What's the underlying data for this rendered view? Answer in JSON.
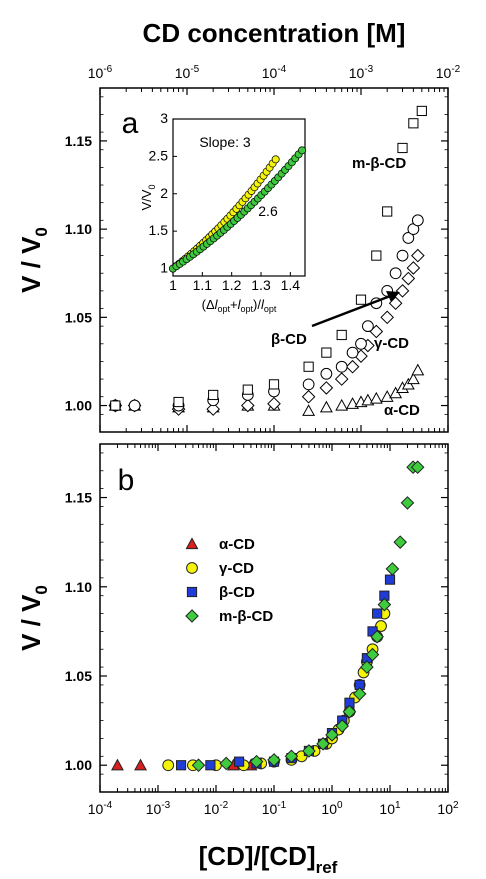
{
  "chart_data": [
    {
      "panel": "a",
      "type": "scatter",
      "xscale": "log",
      "top_axis_title": "CD concentration [M]",
      "top_ticks": [
        "10^-6",
        "10^-5",
        "10^-4",
        "10^-3",
        "10^-2"
      ],
      "xlim": [
        1e-06,
        0.01
      ],
      "ylabel": "V / V0",
      "ylim": [
        0.985,
        1.18
      ],
      "yticks": [
        "1.00",
        "1.05",
        "1.10",
        "1.15"
      ],
      "annotations": [
        "m-β-CD",
        "β-CD",
        "γ-CD",
        "α-CD"
      ],
      "series": [
        {
          "name": "α-CD",
          "marker": "open-triangle",
          "x": [
            1.5e-06,
            2.5e-06,
            8e-06,
            2e-05,
            5e-05,
            0.0001,
            0.00025,
            0.0004,
            0.0006,
            0.0008,
            0.001,
            0.0012,
            0.0015,
            0.002,
            0.0025,
            0.003,
            0.0035,
            0.004,
            0.0045
          ],
          "y": [
            1.0,
            1.0,
            0.999,
            0.999,
            1.0,
            1.0,
            0.997,
            0.999,
            1.0,
            1.001,
            1.002,
            1.003,
            1.004,
            1.005,
            1.007,
            1.01,
            1.012,
            1.015,
            1.02
          ]
        },
        {
          "name": "γ-CD",
          "marker": "open-diamond",
          "x": [
            1.5e-06,
            2.5e-06,
            8e-06,
            2e-05,
            5e-05,
            0.0001,
            0.00025,
            0.0004,
            0.0006,
            0.0008,
            0.001,
            0.0012,
            0.0015,
            0.002,
            0.0025,
            0.003,
            0.0035,
            0.004,
            0.0045
          ],
          "y": [
            1.0,
            1.0,
            0.998,
            0.998,
            1.0,
            1.001,
            1.005,
            1.01,
            1.015,
            1.022,
            1.028,
            1.034,
            1.042,
            1.05,
            1.058,
            1.065,
            1.072,
            1.078,
            1.085
          ]
        },
        {
          "name": "β-CD",
          "marker": "open-circle",
          "x": [
            1.5e-06,
            2.5e-06,
            8e-06,
            2e-05,
            5e-05,
            0.0001,
            0.00025,
            0.0004,
            0.0006,
            0.0008,
            0.001,
            0.0012,
            0.0015,
            0.002,
            0.0025,
            0.003,
            0.0035,
            0.004,
            0.0045
          ],
          "y": [
            1.0,
            1.0,
            1.0,
            1.003,
            1.006,
            1.008,
            1.012,
            1.018,
            1.022,
            1.03,
            1.035,
            1.045,
            1.058,
            1.065,
            1.075,
            1.085,
            1.095,
            1.1,
            1.105
          ]
        },
        {
          "name": "m-β-CD",
          "marker": "open-square",
          "x": [
            1.5e-06,
            8e-06,
            2e-05,
            5e-05,
            0.0001,
            0.00025,
            0.0004,
            0.0006,
            0.001,
            0.0015,
            0.002,
            0.003,
            0.004,
            0.005
          ],
          "y": [
            1.0,
            1.002,
            1.006,
            1.009,
            1.012,
            1.022,
            1.03,
            1.04,
            1.06,
            1.085,
            1.11,
            1.146,
            1.16,
            1.167
          ]
        }
      ],
      "inset": {
        "ylabel": "V/V0",
        "xlabel": "(Δl_opt+l_opt)/l_opt",
        "xlim": [
          1.0,
          1.45
        ],
        "ylim": [
          0.9,
          3.0
        ],
        "xticks": [
          "1",
          "1.1",
          "1.2",
          "1.3",
          "1.4"
        ],
        "yticks": [
          "1",
          "1.5",
          "2",
          "2.5",
          "3"
        ],
        "annotations": [
          "Slope: 3",
          "2.6"
        ],
        "series": [
          {
            "color": "#f4f40a",
            "slope": 3,
            "x_end": 1.35
          },
          {
            "color": "#3ec83e",
            "slope": 2.6,
            "x_end": 1.44
          }
        ]
      }
    },
    {
      "panel": "b",
      "type": "scatter",
      "xscale": "log",
      "xlabel": "[CD]/[CD]ref",
      "xticks": [
        "10^-4",
        "10^-3",
        "10^-2",
        "10^-1",
        "10^0",
        "10^1",
        "10^2"
      ],
      "xlim": [
        0.0001,
        100
      ],
      "ylabel": "V / V0",
      "ylim": [
        0.985,
        1.18
      ],
      "yticks": [
        "1.00",
        "1.05",
        "1.10",
        "1.15"
      ],
      "legend_position": "center-left",
      "series": [
        {
          "name": "α-CD",
          "marker": "triangle",
          "color": "#d81f1f",
          "x": [
            0.0002,
            0.0005,
            0.02,
            0.04
          ],
          "y": [
            1.0,
            1.0,
            1.0,
            1.0
          ]
        },
        {
          "name": "γ-CD",
          "marker": "circle",
          "color": "#f4f40a",
          "x": [
            0.0015,
            0.004,
            0.01,
            0.03,
            0.06,
            0.1,
            0.2,
            0.3,
            0.5,
            0.8,
            1.0,
            1.3,
            1.6,
            2.0,
            2.5,
            3.0,
            3.5,
            4.0,
            5.0,
            6.0,
            7.0,
            8.0
          ],
          "y": [
            1.0,
            1.0,
            1.0,
            1.0,
            1.001,
            1.002,
            1.003,
            1.005,
            1.008,
            1.012,
            1.015,
            1.02,
            1.025,
            1.03,
            1.038,
            1.045,
            1.052,
            1.058,
            1.065,
            1.072,
            1.078,
            1.085
          ]
        },
        {
          "name": "β-CD",
          "marker": "square",
          "color": "#1f3cd8",
          "x": [
            0.0025,
            0.008,
            0.025,
            0.05,
            0.1,
            0.2,
            0.4,
            0.7,
            1.0,
            1.5,
            2.0,
            3.0,
            4.0,
            5.0,
            6.0,
            8.0,
            10.0
          ],
          "y": [
            1.0,
            1.0,
            1.002,
            1.001,
            1.002,
            1.004,
            1.008,
            1.012,
            1.018,
            1.025,
            1.035,
            1.045,
            1.06,
            1.075,
            1.085,
            1.095,
            1.104
          ]
        },
        {
          "name": "m-β-CD",
          "marker": "diamond",
          "color": "#3ecc3e",
          "x": [
            0.005,
            0.015,
            0.05,
            0.1,
            0.2,
            0.4,
            0.7,
            1.0,
            1.5,
            2.0,
            3.0,
            4.0,
            5.0,
            6.0,
            8.0,
            11.0,
            15.0,
            20.0,
            25.0,
            30.0
          ],
          "y": [
            1.0,
            1.001,
            1.002,
            1.003,
            1.005,
            1.008,
            1.012,
            1.017,
            1.022,
            1.03,
            1.04,
            1.055,
            1.062,
            1.072,
            1.09,
            1.11,
            1.125,
            1.147,
            1.167,
            1.167
          ]
        }
      ]
    }
  ]
}
